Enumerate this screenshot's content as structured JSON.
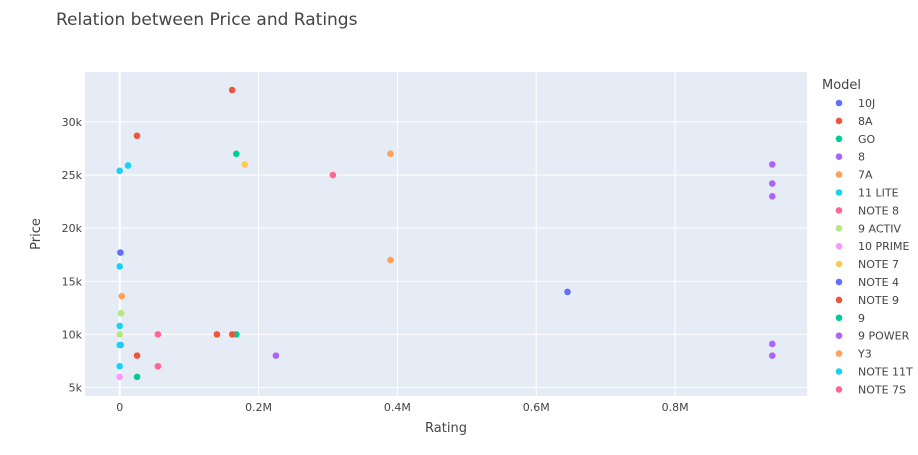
{
  "chart_data": {
    "type": "scatter",
    "title": "Relation between Price and Ratings",
    "xlabel": "Rating",
    "ylabel": "Price",
    "xlim": [
      -50000,
      990000
    ],
    "ylim": [
      4200,
      34700
    ],
    "x_ticks": [
      0,
      200000,
      400000,
      600000,
      800000
    ],
    "x_tick_labels": [
      "0",
      "0.2M",
      "0.4M",
      "0.6M",
      "0.8M"
    ],
    "y_ticks": [
      5000,
      10000,
      15000,
      20000,
      25000,
      30000
    ],
    "y_tick_labels": [
      "5k",
      "10k",
      "15k",
      "20k",
      "25k",
      "30k"
    ],
    "grid": true,
    "legend_title": "Model",
    "legend_position": "right",
    "series": [
      {
        "name": "10J",
        "color": "#636efa",
        "points": [
          [
            1000,
            17700
          ],
          [
            1000,
            9000
          ]
        ]
      },
      {
        "name": "8A",
        "color": "#EF553B",
        "points": [
          [
            25000,
            28700
          ],
          [
            162000,
            33000
          ],
          [
            140000,
            10000
          ],
          [
            25000,
            8000
          ]
        ]
      },
      {
        "name": "GO",
        "color": "#00cc96",
        "points": [
          [
            168000,
            27000
          ],
          [
            168000,
            10000
          ],
          [
            25000,
            6000
          ]
        ]
      },
      {
        "name": "8",
        "color": "#ab63fa",
        "points": [
          [
            225000,
            8000
          ]
        ]
      },
      {
        "name": "7A",
        "color": "#FFA15A",
        "points": [
          [
            390000,
            27000
          ],
          [
            390000,
            17000
          ]
        ]
      },
      {
        "name": "11 LITE",
        "color": "#19d3f3",
        "points": [
          [
            12000,
            25900
          ],
          [
            0,
            25400
          ],
          [
            0,
            16400
          ],
          [
            0,
            10800
          ],
          [
            0,
            9000
          ],
          [
            0,
            7000
          ]
        ]
      },
      {
        "name": "NOTE 8",
        "color": "#FF6692",
        "points": [
          [
            55000,
            10000
          ],
          [
            55000,
            7000
          ]
        ]
      },
      {
        "name": "9 ACTIV",
        "color": "#B6E880",
        "points": [
          [
            2000,
            12000
          ],
          [
            0,
            10000
          ]
        ]
      },
      {
        "name": "10 PRIME",
        "color": "#FF97FF",
        "points": [
          [
            0,
            6000
          ]
        ]
      },
      {
        "name": "NOTE 7",
        "color": "#FECB52",
        "points": [
          [
            180000,
            26000
          ]
        ]
      },
      {
        "name": "NOTE 4",
        "color": "#636efa",
        "points": [
          [
            645000,
            14000
          ]
        ]
      },
      {
        "name": "NOTE 9",
        "color": "#EF553B",
        "points": [
          [
            162000,
            10000
          ]
        ]
      },
      {
        "name": "9",
        "color": "#00cc96",
        "points": []
      },
      {
        "name": "9 POWER",
        "color": "#ab63fa",
        "points": [
          [
            940000,
            26000
          ],
          [
            940000,
            24200
          ],
          [
            940000,
            23000
          ],
          [
            940000,
            9100
          ],
          [
            940000,
            8000
          ]
        ]
      },
      {
        "name": "Y3",
        "color": "#FFA15A",
        "points": [
          [
            3000,
            13600
          ]
        ]
      },
      {
        "name": "NOTE 11T",
        "color": "#19d3f3",
        "points": []
      },
      {
        "name": "NOTE 7S",
        "color": "#FF6692",
        "points": [
          [
            307000,
            25000
          ]
        ]
      }
    ]
  }
}
